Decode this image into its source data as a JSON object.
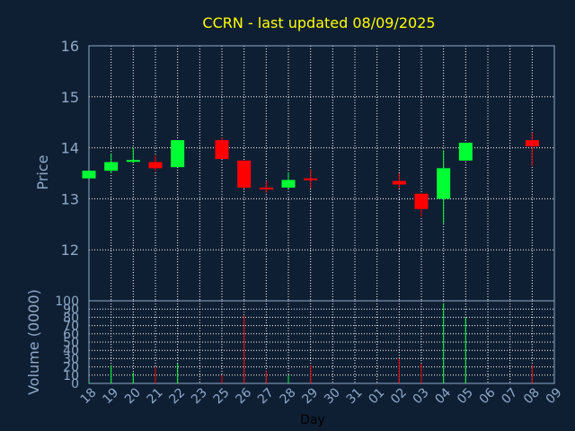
{
  "chart_data": [
    {
      "type": "candlestick",
      "title": "CCRN - last updated 08/09/2025",
      "ylabel": "Price",
      "ylim": [
        11,
        16
      ],
      "yticks": [
        12,
        13,
        14,
        15,
        16
      ],
      "grid": true,
      "colors": {
        "up": "#00ff33",
        "down": "#ff0000",
        "grid": "#ffffff",
        "title": "#ffff00",
        "axis_text": "#8fa9c8"
      },
      "candles": [
        {
          "day": "18",
          "open": 13.4,
          "close": 13.55,
          "high": 13.55,
          "low": 13.4
        },
        {
          "day": "19",
          "open": 13.55,
          "close": 13.72,
          "high": 13.88,
          "low": 13.5
        },
        {
          "day": "20",
          "open": 13.73,
          "close": 13.76,
          "high": 14.0,
          "low": 13.7
        },
        {
          "day": "21",
          "open": 13.72,
          "close": 13.6,
          "high": 13.85,
          "low": 13.55
        },
        {
          "day": "22",
          "open": 13.62,
          "close": 14.15,
          "high": 14.15,
          "low": 13.62
        },
        {
          "day": "25",
          "open": 14.15,
          "close": 13.78,
          "high": 14.2,
          "low": 13.78
        },
        {
          "day": "26",
          "open": 13.75,
          "close": 13.22,
          "high": 13.75,
          "low": 13.2
        },
        {
          "day": "27",
          "open": 13.22,
          "close": 13.2,
          "high": 13.35,
          "low": 13.12
        },
        {
          "day": "28",
          "open": 13.22,
          "close": 13.37,
          "high": 13.52,
          "low": 13.2
        },
        {
          "day": "29",
          "open": 13.4,
          "close": 13.37,
          "high": 13.58,
          "low": 13.2
        },
        {
          "day": "02",
          "open": 13.35,
          "close": 13.28,
          "high": 13.5,
          "low": 13.2
        },
        {
          "day": "03",
          "open": 13.1,
          "close": 12.8,
          "high": 13.1,
          "low": 12.65
        },
        {
          "day": "04",
          "open": 13.0,
          "close": 13.6,
          "high": 13.95,
          "low": 12.52
        },
        {
          "day": "05",
          "open": 13.75,
          "close": 14.1,
          "high": 14.1,
          "low": 13.75
        },
        {
          "day": "08",
          "open": 14.15,
          "close": 14.03,
          "high": 14.3,
          "low": 13.65
        }
      ]
    },
    {
      "type": "bar",
      "ylabel": "Volume (0000)",
      "xlabel": "Day",
      "ylim": [
        0,
        100
      ],
      "yticks": [
        0,
        10,
        20,
        30,
        40,
        50,
        60,
        70,
        80,
        90,
        100
      ],
      "grid": true,
      "categories": [
        "18",
        "19",
        "20",
        "21",
        "22",
        "23",
        "25",
        "26",
        "27",
        "28",
        "29",
        "30",
        "31",
        "01",
        "02",
        "03",
        "04",
        "05",
        "06",
        "07",
        "08",
        "09"
      ],
      "bars": [
        {
          "day": "18",
          "value": 2,
          "color": "#00ff33"
        },
        {
          "day": "19",
          "value": 22,
          "color": "#00ff33"
        },
        {
          "day": "20",
          "value": 13,
          "color": "#00ff33"
        },
        {
          "day": "21",
          "value": 20,
          "color": "#ff0000"
        },
        {
          "day": "22",
          "value": 24,
          "color": "#00ff33"
        },
        {
          "day": "25",
          "value": 10,
          "color": "#ff0000"
        },
        {
          "day": "26",
          "value": 82,
          "color": "#ff0000"
        },
        {
          "day": "27",
          "value": 15,
          "color": "#ff0000"
        },
        {
          "day": "28",
          "value": 10,
          "color": "#00ff33"
        },
        {
          "day": "29",
          "value": 22,
          "color": "#ff0000"
        },
        {
          "day": "02",
          "value": 30,
          "color": "#ff0000"
        },
        {
          "day": "03",
          "value": 24,
          "color": "#ff0000"
        },
        {
          "day": "04",
          "value": 97,
          "color": "#00ff33"
        },
        {
          "day": "05",
          "value": 80,
          "color": "#00ff33"
        },
        {
          "day": "08",
          "value": 22,
          "color": "#ff0000"
        }
      ]
    }
  ]
}
